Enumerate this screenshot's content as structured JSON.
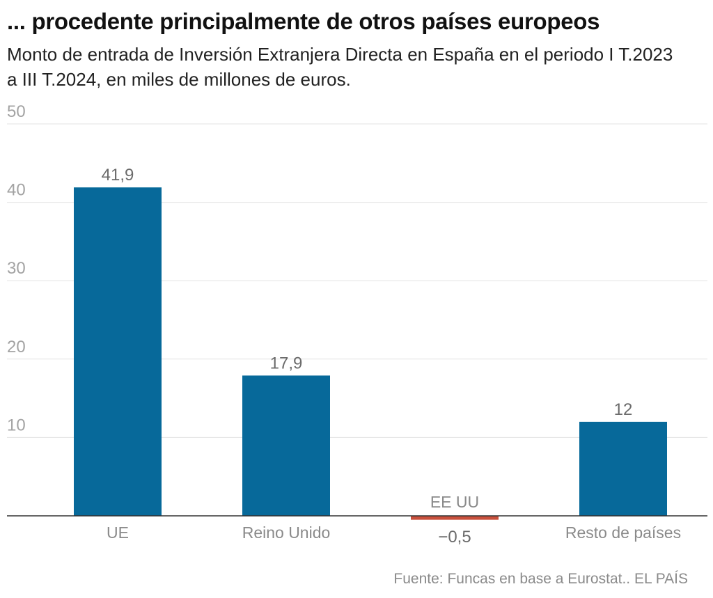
{
  "header": {
    "title": "... procedente principalmente de otros países europeos",
    "subtitle": "Monto de entrada de Inversión Extranjera Directa en España en el periodo I T.2023 a III T.2024, en miles de millones de euros."
  },
  "footer": {
    "source": "Fuente: Funcas en base a Eurostat.. EL PAÍS"
  },
  "colors": {
    "positive": "#07699a",
    "negative": "#c8503c",
    "grid": "#e3e3e3",
    "axis": "#333333"
  },
  "chart_data": {
    "type": "bar",
    "categories": [
      "UE",
      "Reino Unido",
      "EE UU",
      "Resto de países"
    ],
    "values": [
      41.9,
      17.9,
      -0.5,
      12
    ],
    "value_labels": [
      "41,9",
      "17,9",
      "−0,5",
      "12"
    ],
    "ylim": [
      0,
      50
    ],
    "y_ticks": [
      10,
      20,
      30,
      40,
      50
    ],
    "y_tick_labels": [
      "10",
      "20",
      "30",
      "40",
      "50"
    ],
    "grid": true,
    "legend": "none",
    "xlabel": "",
    "ylabel": ""
  }
}
